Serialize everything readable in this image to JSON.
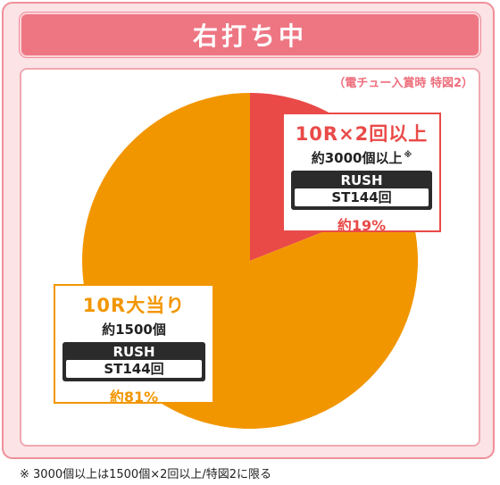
{
  "header": {
    "title": "右打ち中"
  },
  "note": "（電チュー入賞時 特図2）",
  "footnote": "※ 3000個以上は1500個×2回以上/特図2に限る",
  "colors": {
    "rush": "#e94a48",
    "big": "#f29600",
    "pink": "#ee7683"
  },
  "chart_data": {
    "type": "pie",
    "title": "右打ち中",
    "subtitle": "（電チュー入賞時 特図2）",
    "slices": [
      {
        "label": "10R×2回以上",
        "payout": "約3000個以上",
        "mark": "※",
        "mode": "RUSH",
        "st": "ST144回",
        "percent_label": "約19%",
        "value": 19,
        "color": "#e94a48"
      },
      {
        "label": "10R大当り",
        "payout": "約1500個",
        "mode": "RUSH",
        "st": "ST144回",
        "percent_label": "約81%",
        "value": 81,
        "color": "#f29600"
      }
    ]
  }
}
